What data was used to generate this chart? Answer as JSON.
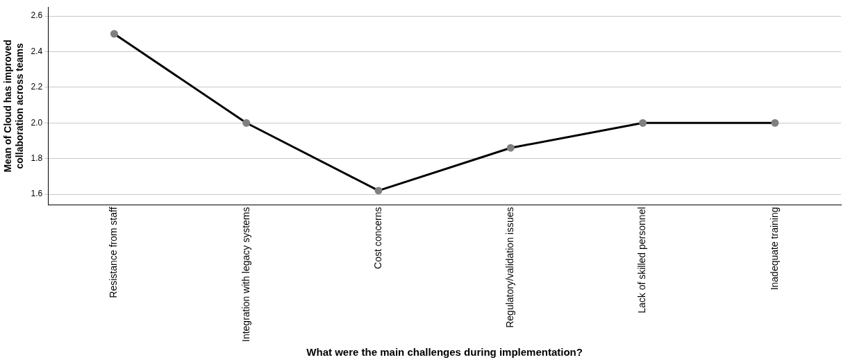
{
  "chart_data": {
    "type": "line",
    "xlabel": "What were the main challenges during implementation?",
    "ylabel": "Mean of Cloud has improved collaboration across teams",
    "categories": [
      "Resistance from staff",
      "Integration with legacy systems",
      "Cost concerns",
      "Regulatory/validation issues",
      "Lack of skilled personnel",
      "Inadequate training"
    ],
    "series": [
      {
        "color": "#000000",
        "values": [
          2.5,
          2.0,
          1.62,
          1.86,
          2.0,
          2.0
        ]
      }
    ],
    "ylim": [
      1.54,
      2.65
    ],
    "yticks": [
      {
        "value": 1.6,
        "label": "1.6"
      },
      {
        "value": 1.8,
        "label": "1.8"
      },
      {
        "value": 2,
        "label": "2.0"
      },
      {
        "value": 2.2,
        "label": "2.2"
      },
      {
        "value": 2.4,
        "label": "2.4"
      },
      {
        "value": 2.6,
        "label": "2.6"
      }
    ],
    "grid": "y",
    "legend": false,
    "marker": "circle",
    "line_style": "solid"
  }
}
